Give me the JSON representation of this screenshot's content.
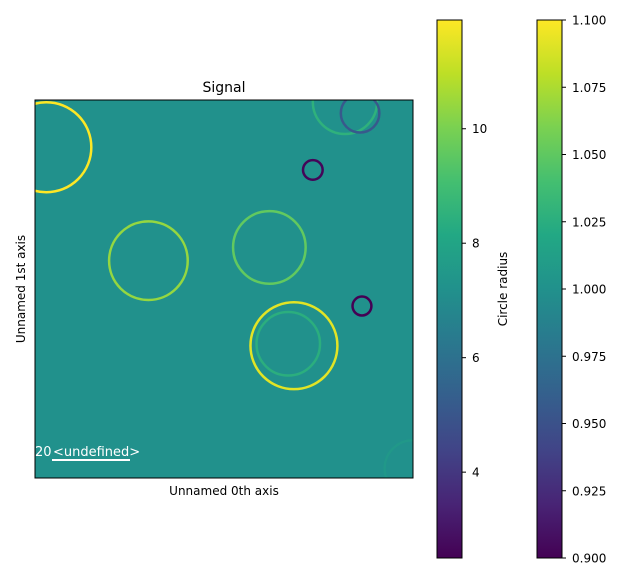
{
  "chart_data": {
    "type": "scatter",
    "title": "Signal",
    "xlabel": "Unnamed 0th axis",
    "ylabel": "Unnamed 1st axis",
    "xlim": [
      0,
      100
    ],
    "ylim": [
      0,
      100
    ],
    "background_value": 1.0,
    "scalebar": {
      "value": "20",
      "label": "<undefined>"
    },
    "circles": [
      {
        "x": 3,
        "y": 87.5,
        "radius": 11.9
      },
      {
        "x": 82,
        "y": 99.5,
        "radius": 8.5
      },
      {
        "x": 86,
        "y": 96.5,
        "radius": 5.1
      },
      {
        "x": 73.5,
        "y": 81.5,
        "radius": 2.6
      },
      {
        "x": 30,
        "y": 57.5,
        "radius": 10.4
      },
      {
        "x": 62,
        "y": 61,
        "radius": 9.6
      },
      {
        "x": 86.5,
        "y": 45.5,
        "radius": 2.5
      },
      {
        "x": 68.5,
        "y": 35,
        "radius": 11.5
      },
      {
        "x": 67,
        "y": 35.5,
        "radius": 8.4
      },
      {
        "x": 100,
        "y": 2.5,
        "radius": 7.5
      }
    ],
    "colorbars": [
      {
        "label": "Circle radius",
        "min": 2.5,
        "max": 11.9,
        "ticks": [
          4,
          6,
          8,
          10
        ]
      },
      {
        "label": "",
        "min": 0.9,
        "max": 1.1,
        "ticks": [
          0.9,
          0.925,
          0.95,
          0.975,
          1.0,
          1.025,
          1.05,
          1.075,
          1.1
        ],
        "tick_labels": [
          "0.900",
          "0.925",
          "0.950",
          "0.975",
          "1.000",
          "1.025",
          "1.050",
          "1.075",
          "1.100"
        ]
      }
    ]
  },
  "colors": {
    "background_fill": "#21918c",
    "scalebar": "#ffffff"
  }
}
